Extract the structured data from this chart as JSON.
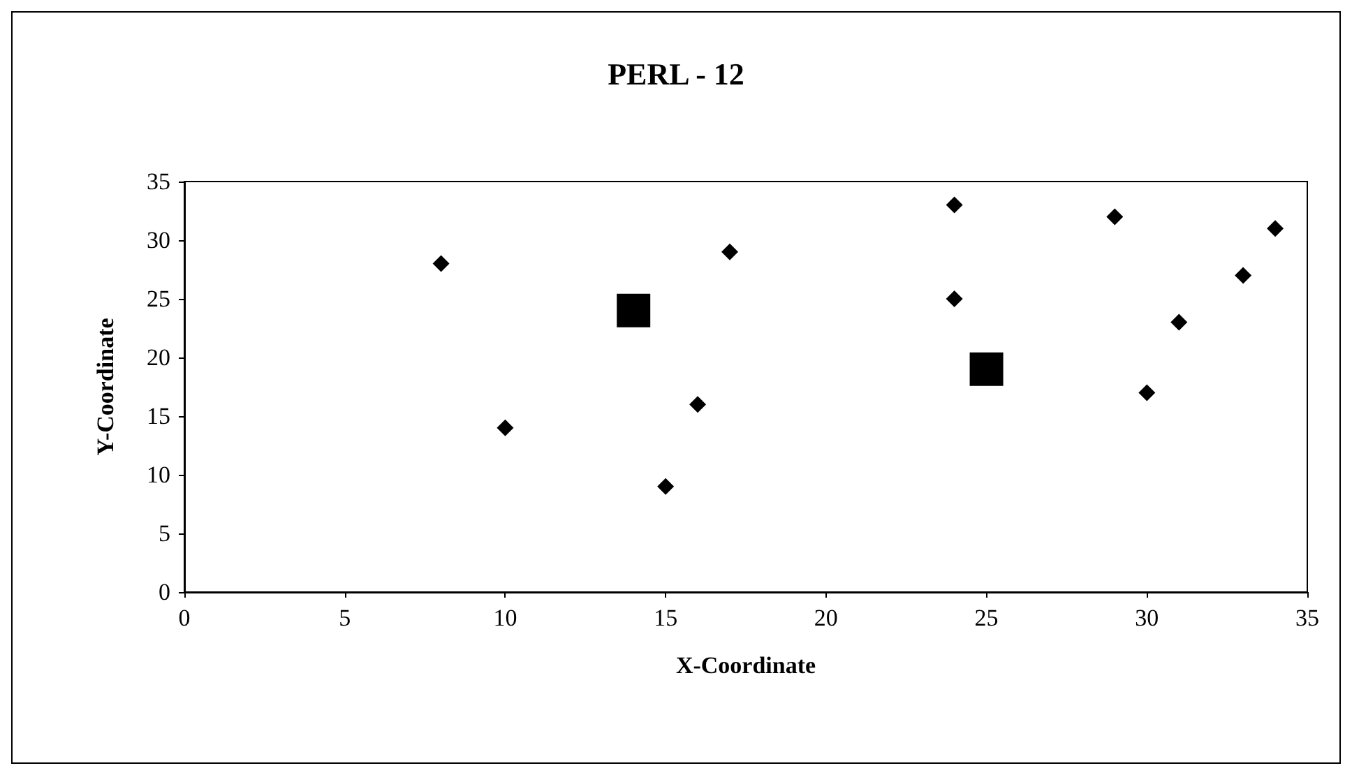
{
  "chart_data": {
    "type": "scatter",
    "title": "PERL - 12",
    "xlabel": "X-Coordinate",
    "ylabel": "Y-Coordinate",
    "xlim": [
      0,
      35
    ],
    "xticks": [
      0,
      5,
      10,
      15,
      20,
      25,
      30,
      35
    ],
    "ylim": [
      0,
      35
    ],
    "yticks": [
      0,
      5,
      10,
      15,
      20,
      25,
      30,
      35
    ],
    "grid": false,
    "series": [
      {
        "color": "#000000",
        "marker": "diamond",
        "x": [
          8,
          10,
          15,
          16,
          17,
          24,
          24,
          29,
          30,
          31,
          33,
          34
        ],
        "values": [
          28,
          14,
          9,
          16,
          29,
          33,
          25,
          32,
          17,
          23,
          27,
          31
        ]
      },
      {
        "color": "#000000",
        "marker": "square",
        "x": [
          14,
          25
        ],
        "values": [
          24,
          19
        ]
      }
    ]
  }
}
